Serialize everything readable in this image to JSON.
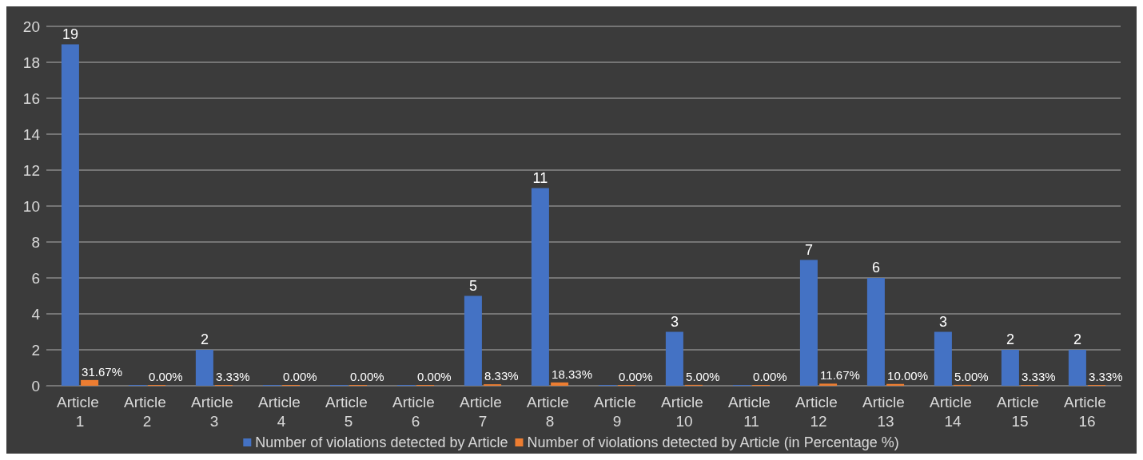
{
  "chart_data": {
    "type": "bar",
    "categories": [
      "Article 1",
      "Article 2",
      "Article 3",
      "Article 4",
      "Article 5",
      "Article 6",
      "Article 7",
      "Article 8",
      "Article 9",
      "Article 10",
      "Article 11",
      "Article 12",
      "Article 13",
      "Article 14",
      "Article 15",
      "Article 16"
    ],
    "series": [
      {
        "name": "Number of violations detected by Article",
        "color": "#4472c4",
        "values": [
          19,
          0,
          2,
          0,
          0,
          0,
          5,
          11,
          0,
          3,
          0,
          7,
          6,
          3,
          2,
          2
        ],
        "value_labels": [
          "19",
          null,
          "2",
          null,
          null,
          null,
          "5",
          "11",
          null,
          "3",
          null,
          "7",
          "6",
          "3",
          "2",
          "2"
        ]
      },
      {
        "name": "Number of violations detected by Article (in Percentage %)",
        "color": "#ed7d31",
        "values": [
          0.3167,
          0,
          0.0333,
          0,
          0,
          0,
          0.0833,
          0.1833,
          0,
          0.05,
          0,
          0.1167,
          0.1,
          0.05,
          0.0333,
          0.0333
        ],
        "value_labels": [
          "31.67%",
          "0.00%",
          "3.33%",
          "0.00%",
          "0.00%",
          "0.00%",
          "8.33%",
          "18.33%",
          "0.00%",
          "5.00%",
          "0.00%",
          "11.67%",
          "10.00%",
          "5.00%",
          "3.33%",
          "3.33%"
        ]
      }
    ],
    "ylim": [
      0,
      20
    ],
    "yticks": [
      0,
      2,
      4,
      6,
      8,
      10,
      12,
      14,
      16,
      18,
      20
    ],
    "grid": true,
    "legend": "bottom"
  }
}
